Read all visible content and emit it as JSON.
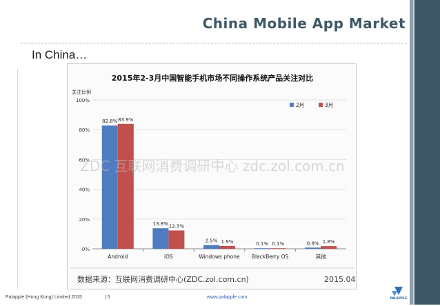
{
  "slide": {
    "title": "China Mobile App Market",
    "subtitle": "In China…",
    "footer_company": "Palapple (Hong Kong) Limited 2015",
    "footer_page": "| 5",
    "footer_url": "www.palapple.com",
    "logo_text": "PALAPPLE",
    "colors": {
      "accent": "#3f5866",
      "series_feb": "#4f7cc0",
      "series_mar": "#c0504d"
    }
  },
  "chart_data": {
    "type": "bar",
    "title": "2015年2-3月中国智能手机市场不同操作系统产品关注对比",
    "ylabel": "关注比例",
    "categories": [
      "Android",
      "iOS",
      "Windows phone",
      "BlackBerry OS",
      "其他"
    ],
    "series": [
      {
        "name": "2月",
        "values": [
          82.8,
          13.8,
          2.5,
          0.1,
          0.8
        ]
      },
      {
        "name": "3月",
        "values": [
          83.9,
          12.3,
          1.9,
          0.1,
          1.8
        ]
      }
    ],
    "value_labels": [
      [
        "82.8%",
        "13.8%",
        "2.5%",
        "0.1%",
        "0.8%"
      ],
      [
        "83.9%",
        "12.3%",
        "1.9%",
        "0.1%",
        "1.8%"
      ]
    ],
    "yticks": [
      "0%",
      "20%",
      "40%",
      "60%",
      "80%",
      "100%"
    ],
    "ylim": [
      0,
      100
    ],
    "grid": true,
    "legend": "top-right",
    "watermark": "ZDC 互联网消费调研中心 zdc.zol.com.cn",
    "source": "数据来源：互联网消费调研中心(ZDC.zol.com.cn)",
    "date": "2015.04"
  }
}
